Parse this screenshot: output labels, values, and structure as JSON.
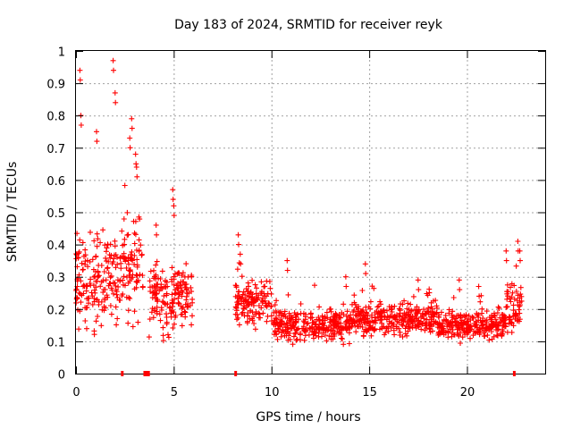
{
  "chart_data": {
    "type": "scatter",
    "title": "Day 183 of 2024, SRMTID for receiver reyk",
    "xlabel": "GPS time / hours",
    "ylabel": "SRMTID / TECUs",
    "xlim": [
      0,
      24
    ],
    "ylim": [
      0,
      1
    ],
    "grid": true,
    "marker": "+",
    "color": "#ff0000",
    "x_ticks": [
      "0",
      "5",
      "10",
      "15",
      "20"
    ],
    "y_ticks": [
      "0",
      "0.1",
      "0.2",
      "0.3",
      "0.4",
      "0.5",
      "0.6",
      "0.7",
      "0.8",
      "0.9",
      "1"
    ],
    "x_tick_values": [
      0,
      5,
      10,
      15,
      20
    ],
    "y_tick_values": [
      0,
      0.1,
      0.2,
      0.3,
      0.4,
      0.5,
      0.6,
      0.7,
      0.8,
      0.9,
      1
    ],
    "axis_markers_hours": [
      [
        2.3,
        2.38
      ],
      [
        3.45,
        3.78
      ],
      [
        8.1,
        8.18
      ],
      [
        22.35,
        22.45
      ]
    ],
    "segments": [
      {
        "x_start": 0.0,
        "x_end": 2.35,
        "median": 0.28,
        "spread": 0.14,
        "peaks": [
          [
            0.2,
            0.94
          ],
          [
            0.25,
            0.8
          ],
          [
            1.05,
            0.75
          ],
          [
            1.9,
            0.97
          ],
          [
            2.0,
            0.87
          ]
        ]
      },
      {
        "x_start": 2.35,
        "x_end": 3.45,
        "median": 0.33,
        "spread": 0.18,
        "peaks": [
          [
            2.75,
            0.73
          ],
          [
            2.85,
            0.79
          ],
          [
            3.05,
            0.68
          ],
          [
            3.1,
            0.64
          ]
        ]
      },
      {
        "x_start": 3.7,
        "x_end": 5.95,
        "median": 0.24,
        "spread": 0.11,
        "peaks": [
          [
            4.95,
            0.57
          ],
          [
            5.0,
            0.52
          ],
          [
            4.1,
            0.46
          ]
        ]
      },
      {
        "x_start": 8.15,
        "x_end": 10.0,
        "median": 0.22,
        "spread": 0.07,
        "peaks": [
          [
            8.3,
            0.43
          ],
          [
            8.4,
            0.37
          ]
        ]
      },
      {
        "x_start": 10.0,
        "x_end": 14.0,
        "median": 0.15,
        "spread": 0.05,
        "peaks": [
          [
            10.8,
            0.35
          ],
          [
            13.8,
            0.3
          ]
        ]
      },
      {
        "x_start": 14.0,
        "x_end": 18.5,
        "median": 0.17,
        "spread": 0.05,
        "peaks": [
          [
            14.8,
            0.34
          ],
          [
            17.5,
            0.29
          ]
        ]
      },
      {
        "x_start": 18.5,
        "x_end": 22.0,
        "median": 0.15,
        "spread": 0.05,
        "peaks": [
          [
            19.6,
            0.29
          ],
          [
            20.6,
            0.27
          ]
        ]
      },
      {
        "x_start": 22.0,
        "x_end": 22.8,
        "median": 0.2,
        "spread": 0.07,
        "peaks": [
          [
            22.0,
            0.38
          ],
          [
            22.6,
            0.41
          ],
          [
            22.7,
            0.38
          ]
        ]
      }
    ]
  }
}
